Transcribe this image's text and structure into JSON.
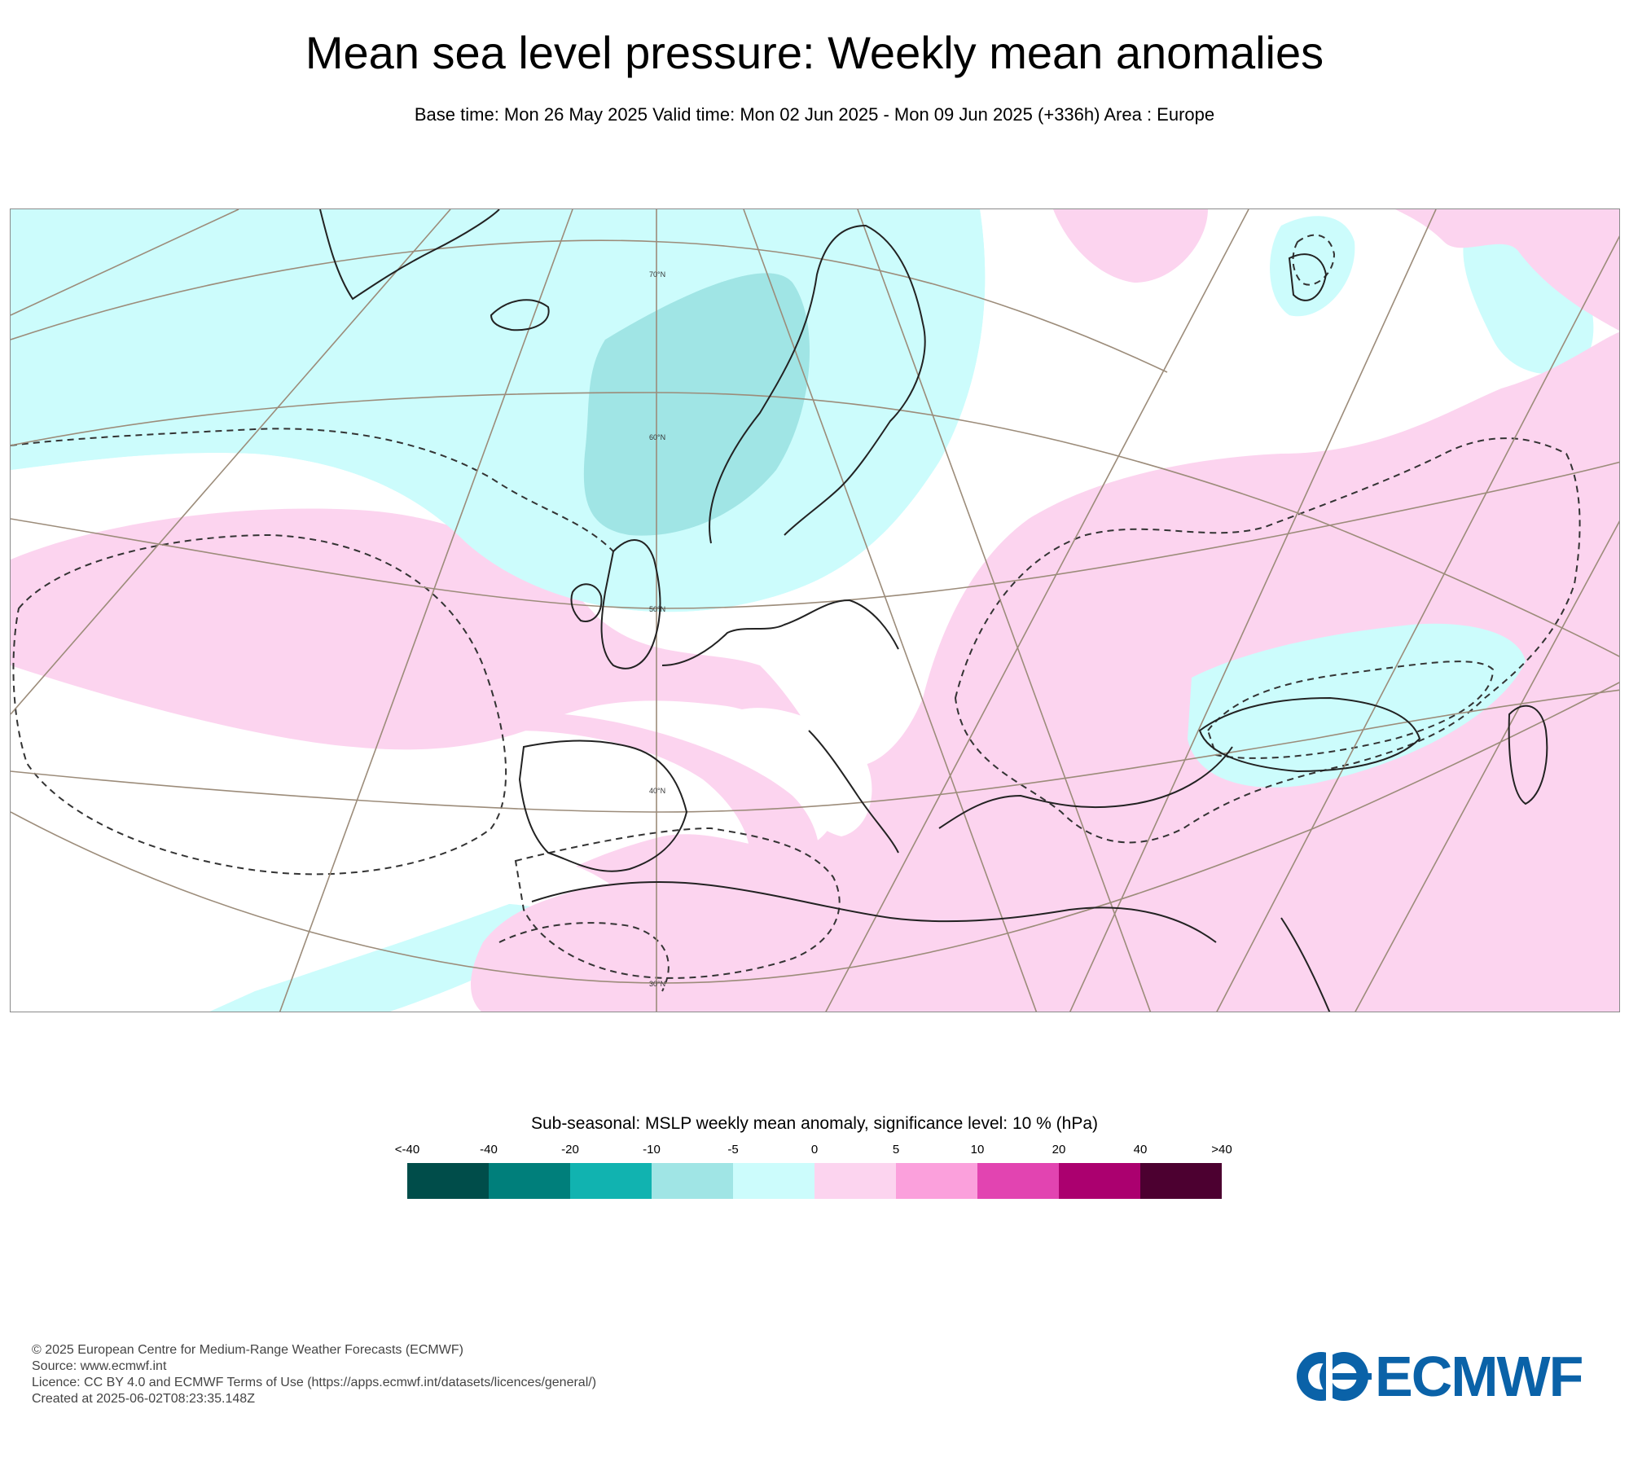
{
  "header": {
    "title": "Mean sea level pressure: Weekly mean anomalies",
    "subtitle": "Base time: Mon 26 May 2025 Valid time: Mon 02 Jun 2025 - Mon 09 Jun 2025 (+336h) Area : Europe"
  },
  "map": {
    "latitude_labels": [
      "70°N",
      "60°N",
      "50°N",
      "40°N",
      "30°N"
    ],
    "colors": {
      "neg_5_0": "#ccfcfc",
      "neg_10_5": "#a0e5e5",
      "pos_0_5": "#fcd4ef",
      "white": "#ffffff",
      "coast": "#222222",
      "grid": "#9c8c7a"
    }
  },
  "legend": {
    "title": "Sub-seasonal: MSLP weekly mean anomaly, significance level: 10 % (hPa)",
    "labels": [
      "<-40",
      "-40",
      "-20",
      "-10",
      "-5",
      "0",
      "5",
      "10",
      "20",
      "40",
      ">40"
    ],
    "colors": [
      "#004d4a",
      "#007f7b",
      "#11b3b0",
      "#a0e5e5",
      "#ccfcfc",
      "#fcd4ef",
      "#fba0dc",
      "#e244b1",
      "#ab006f",
      "#4c0030"
    ]
  },
  "footer": {
    "copyright": "© 2025 European Centre for Medium-Range Weather Forecasts (ECMWF)",
    "source": "Source: www.ecmwf.int",
    "licence": "Licence: CC BY 4.0 and ECMWF Terms of Use (https://apps.ecmwf.int/datasets/licences/general/)",
    "created": "Created at 2025-06-02T08:23:35.148Z"
  },
  "logo": {
    "text": "ECMWF",
    "color": "#0a62a8"
  }
}
